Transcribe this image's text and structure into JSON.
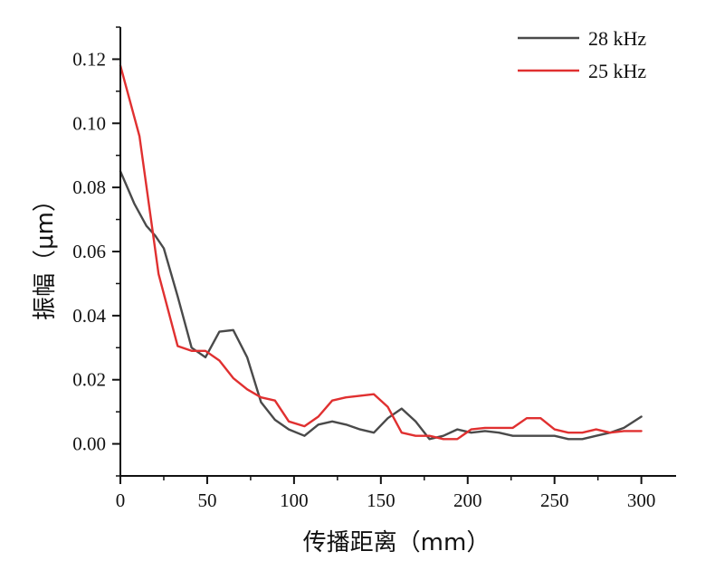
{
  "chart_data": {
    "type": "line",
    "xlabel": "传播距离（mm）",
    "ylabel": "振幅（μm）",
    "xlim": [
      0,
      320
    ],
    "ylim": [
      -0.01,
      0.13
    ],
    "xticks": [
      0,
      50,
      100,
      150,
      200,
      250,
      300
    ],
    "yticks": [
      0.0,
      0.02,
      0.04,
      0.06,
      0.08,
      0.1,
      0.12
    ],
    "xtick_labels": [
      "0",
      "50",
      "100",
      "150",
      "200",
      "250",
      "300"
    ],
    "ytick_labels": [
      "0.00",
      "0.02",
      "0.04",
      "0.06",
      "0.08",
      "0.10",
      "0.12"
    ],
    "grid": false,
    "legend_position": "top-right",
    "series": [
      {
        "name": "28 kHz",
        "color": "#4a4a4a",
        "x": [
          0,
          4,
          8,
          15,
          20,
          25,
          33,
          41,
          49,
          57,
          65,
          73,
          81,
          89,
          97,
          106,
          114,
          122,
          130,
          138,
          146,
          154,
          162,
          170,
          178,
          186,
          194,
          202,
          210,
          218,
          226,
          234,
          242,
          250,
          258,
          266,
          274,
          282,
          290,
          300
        ],
        "y": [
          0.085,
          0.08,
          0.075,
          0.068,
          0.065,
          0.061,
          0.046,
          0.03,
          0.027,
          0.035,
          0.0355,
          0.027,
          0.013,
          0.0075,
          0.0045,
          0.0025,
          0.006,
          0.007,
          0.006,
          0.0045,
          0.0035,
          0.008,
          0.011,
          0.007,
          0.0015,
          0.0025,
          0.0045,
          0.0035,
          0.004,
          0.0035,
          0.0025,
          0.0025,
          0.0025,
          0.0025,
          0.0015,
          0.0015,
          0.0025,
          0.0035,
          0.005,
          0.0085
        ]
      },
      {
        "name": "25 kHz",
        "color": "#e03030",
        "x": [
          0,
          11,
          22,
          33,
          41,
          49,
          57,
          65,
          73,
          81,
          89,
          97,
          106,
          114,
          122,
          130,
          138,
          146,
          154,
          162,
          170,
          178,
          186,
          194,
          202,
          210,
          218,
          226,
          234,
          242,
          250,
          258,
          266,
          274,
          282,
          290,
          300
        ],
        "y": [
          0.118,
          0.096,
          0.053,
          0.0305,
          0.029,
          0.029,
          0.026,
          0.0205,
          0.017,
          0.0145,
          0.0135,
          0.007,
          0.0055,
          0.0085,
          0.0135,
          0.0145,
          0.015,
          0.0155,
          0.0115,
          0.0035,
          0.0025,
          0.0025,
          0.0015,
          0.0015,
          0.0045,
          0.005,
          0.005,
          0.005,
          0.008,
          0.008,
          0.0045,
          0.0035,
          0.0035,
          0.0045,
          0.0035,
          0.004,
          0.004
        ]
      }
    ]
  }
}
